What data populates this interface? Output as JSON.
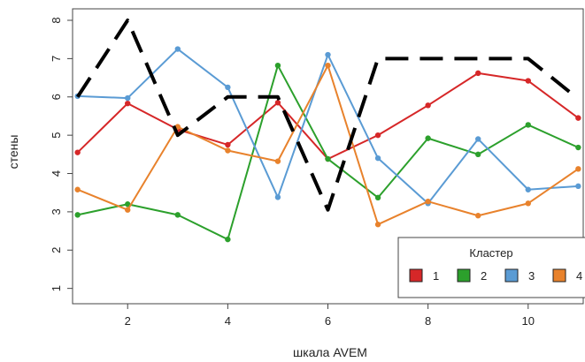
{
  "chart_data": {
    "type": "line",
    "xlabel": "шкала AVEM",
    "ylabel": "стены",
    "xlim": [
      0.9,
      11.1
    ],
    "ylim": [
      0.6,
      8.3
    ],
    "x_ticks": [
      2,
      4,
      6,
      8,
      10
    ],
    "y_ticks": [
      1,
      2,
      3,
      4,
      5,
      6,
      7,
      8
    ],
    "x": [
      1,
      2,
      3,
      4,
      5,
      6,
      7,
      8,
      9,
      10,
      11
    ],
    "legend": {
      "title": "Кластер",
      "placement": "bottom-right"
    },
    "series": [
      {
        "name": "1",
        "color": "#d62728",
        "values": [
          4.55,
          5.83,
          5.15,
          4.75,
          5.85,
          4.38,
          5.0,
          5.78,
          6.62,
          6.42,
          5.45
        ]
      },
      {
        "name": "2",
        "color": "#2ca02c",
        "values": [
          2.92,
          3.2,
          2.92,
          2.28,
          6.82,
          4.38,
          3.37,
          4.92,
          4.5,
          5.27,
          4.68
        ]
      },
      {
        "name": "3",
        "color": "#5a9bd4",
        "values": [
          6.02,
          5.97,
          7.25,
          6.25,
          3.38,
          7.1,
          4.4,
          3.22,
          4.9,
          3.58,
          3.67
        ]
      },
      {
        "name": "4",
        "color": "#e8822c",
        "values": [
          3.58,
          3.05,
          5.22,
          4.6,
          4.32,
          6.82,
          2.67,
          3.27,
          2.9,
          3.22,
          4.12
        ]
      }
    ],
    "reference_line": {
      "style": "dashed",
      "color": "#000000",
      "values": [
        6.0,
        8.0,
        5.0,
        6.0,
        6.0,
        3.05,
        7.0,
        7.0,
        7.0,
        7.0,
        5.95
      ]
    }
  }
}
